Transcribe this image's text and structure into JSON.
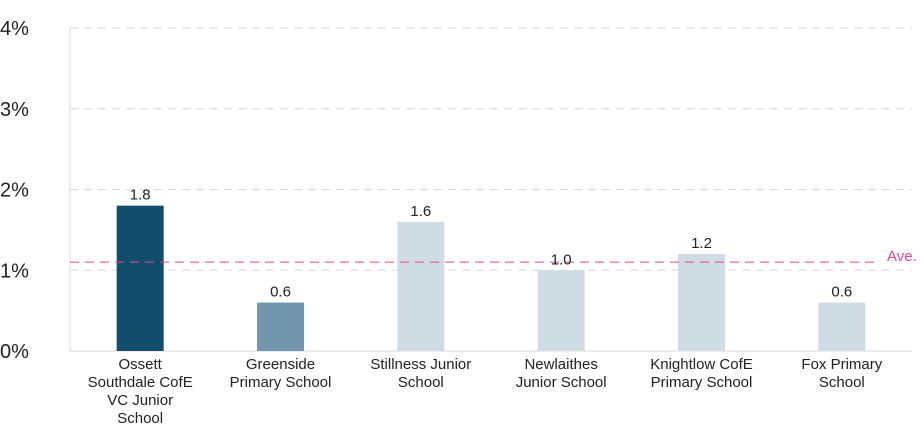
{
  "chart_data": {
    "type": "bar",
    "title": "",
    "xlabel": "",
    "ylabel": "",
    "categories": [
      [
        "Ossett",
        "Southdale CofE",
        "VC Junior",
        "School"
      ],
      [
        "Greenside",
        "Primary School"
      ],
      [
        "Stillness Junior",
        "School"
      ],
      [
        "Newlaithes",
        "Junior School"
      ],
      [
        "Knightlow CofE",
        "Primary School"
      ],
      [
        "Fox Primary",
        "School"
      ]
    ],
    "values": [
      1.8,
      0.6,
      1.6,
      1.0,
      1.2,
      0.6
    ],
    "value_labels": [
      "1.8",
      "0.6",
      "1.6",
      "1.0",
      "1.2",
      "0.6"
    ],
    "bar_colors": [
      "#124e6b",
      "#7296ae",
      "#d0dce4",
      "#d0dce4",
      "#d0dce4",
      "#d0dce4"
    ],
    "yticks": [
      0,
      1,
      2,
      3,
      4
    ],
    "ytick_labels": [
      "0%",
      "1%",
      "2%",
      "3%",
      "4%"
    ],
    "ylim": [
      0,
      4
    ],
    "grid": true,
    "grid_color": "#d9d9d9",
    "average": {
      "value": 1.1,
      "label": "Ave.",
      "color": "#e8439a"
    }
  }
}
